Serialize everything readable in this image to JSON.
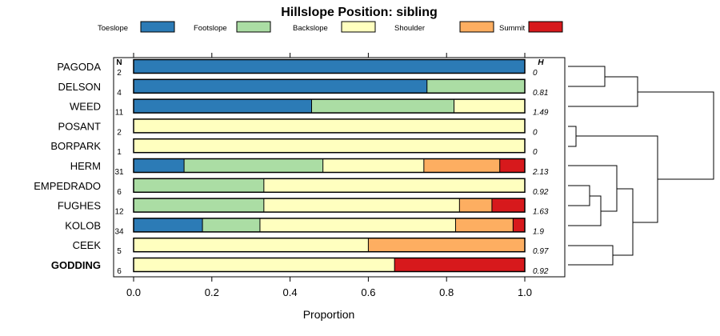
{
  "chart_data": {
    "type": "bar",
    "orientation": "horizontal",
    "stacked": true,
    "title": "Hillslope Position: sibling",
    "xlabel": "Proportion",
    "ylabel": "",
    "xlim": [
      0,
      1
    ],
    "x_ticks": [
      "0.0",
      "0.2",
      "0.4",
      "0.6",
      "0.8",
      "1.0"
    ],
    "n_header": "N",
    "h_header": "H",
    "legend_position": "top",
    "series": [
      {
        "name": "Toeslope",
        "color": "#2C7BB6"
      },
      {
        "name": "Footslope",
        "color": "#ABDDA4"
      },
      {
        "name": "Backslope",
        "color": "#FFFFBF"
      },
      {
        "name": "Shoulder",
        "color": "#FDAE61"
      },
      {
        "name": "Summit",
        "color": "#D7191C"
      }
    ],
    "categories": [
      {
        "label": "PAGODA",
        "n": "2",
        "h": "0",
        "values": [
          1.0,
          0,
          0,
          0,
          0
        ],
        "bold": false
      },
      {
        "label": "DELSON",
        "n": "4",
        "h": "0.81",
        "values": [
          0.75,
          0.25,
          0,
          0,
          0
        ],
        "bold": false
      },
      {
        "label": "WEED",
        "n": "11",
        "h": "1.49",
        "values": [
          0.455,
          0.364,
          0.181,
          0,
          0
        ],
        "bold": false
      },
      {
        "label": "POSANT",
        "n": "2",
        "h": "0",
        "values": [
          0,
          0,
          1.0,
          0,
          0
        ],
        "bold": false
      },
      {
        "label": "BORPARK",
        "n": "1",
        "h": "0",
        "values": [
          0,
          0,
          1.0,
          0,
          0
        ],
        "bold": false
      },
      {
        "label": "HERM",
        "n": "31",
        "h": "2.13",
        "values": [
          0.129,
          0.355,
          0.258,
          0.194,
          0.064
        ],
        "bold": false
      },
      {
        "label": "EMPEDRADO",
        "n": "6",
        "h": "0.92",
        "values": [
          0,
          0.333,
          0.667,
          0,
          0
        ],
        "bold": false
      },
      {
        "label": "FUGHES",
        "n": "12",
        "h": "1.63",
        "values": [
          0,
          0.333,
          0.5,
          0.083,
          0.084
        ],
        "bold": false
      },
      {
        "label": "KOLOB",
        "n": "34",
        "h": "1.9",
        "values": [
          0.176,
          0.147,
          0.5,
          0.147,
          0.03
        ],
        "bold": false
      },
      {
        "label": "CEEK",
        "n": "5",
        "h": "0.97",
        "values": [
          0,
          0,
          0.6,
          0.4,
          0
        ],
        "bold": false
      },
      {
        "label": "GODDING",
        "n": "6",
        "h": "0.92",
        "values": [
          0,
          0,
          0.667,
          0,
          0.333
        ],
        "bold": true
      }
    ]
  }
}
